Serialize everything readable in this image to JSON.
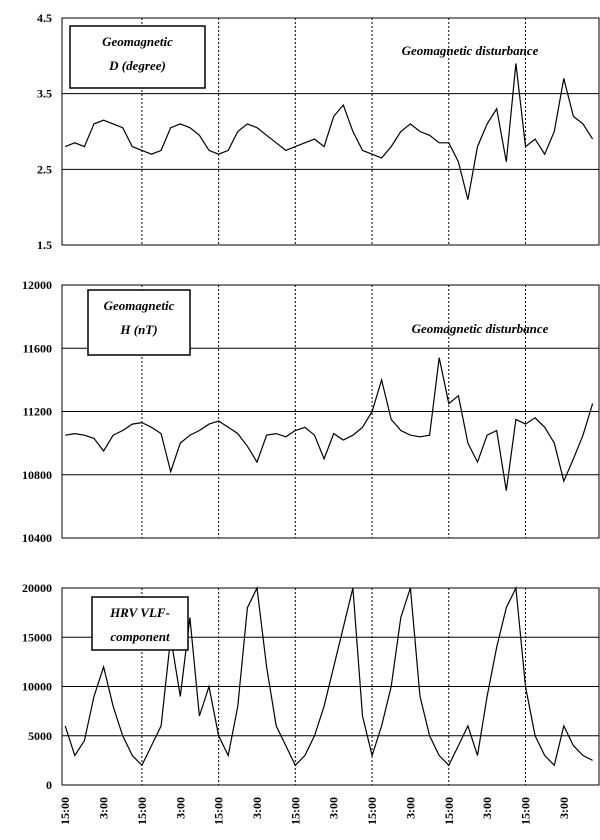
{
  "chart_data": [
    {
      "type": "line",
      "title": [
        "Geomagnetic",
        "D (degree)"
      ],
      "annotation": "Geomagnetic disturbance",
      "color": "#000000",
      "x": [
        0,
        3,
        6,
        9,
        12,
        15,
        18,
        21,
        24,
        27,
        30,
        33,
        36,
        39,
        42,
        45,
        48,
        51,
        54,
        57,
        60,
        63,
        66,
        69,
        72,
        75,
        78,
        81,
        84,
        87,
        90,
        93,
        96,
        99,
        102,
        105,
        108,
        111,
        114,
        117,
        120,
        123,
        126,
        129,
        132,
        135,
        138,
        141,
        144,
        147,
        150,
        153,
        156,
        159,
        162,
        165
      ],
      "values": [
        2.8,
        2.85,
        2.8,
        3.1,
        3.15,
        3.1,
        3.05,
        2.8,
        2.75,
        2.7,
        2.75,
        3.05,
        3.1,
        3.05,
        2.95,
        2.75,
        2.7,
        2.75,
        3.0,
        3.1,
        3.05,
        2.95,
        2.85,
        2.75,
        2.8,
        2.85,
        2.9,
        2.8,
        3.2,
        3.35,
        3.0,
        2.75,
        2.7,
        2.65,
        2.8,
        3.0,
        3.1,
        3.0,
        2.95,
        2.85,
        2.85,
        2.6,
        2.1,
        2.8,
        3.1,
        3.3,
        2.6,
        3.9,
        2.8,
        2.9,
        2.7,
        3.0,
        3.7,
        3.2,
        3.1,
        2.9
      ],
      "xlim": [
        -1,
        167
      ],
      "ylim": [
        1.5,
        4.5
      ],
      "yticks": [
        1.5,
        2.5,
        3.5,
        4.5
      ],
      "grid": true
    },
    {
      "type": "line",
      "title": [
        "Geomagnetic",
        "H (nT)"
      ],
      "annotation": "Geomagnetic disturbance",
      "color": "#000000",
      "x": [
        0,
        3,
        6,
        9,
        12,
        15,
        18,
        21,
        24,
        27,
        30,
        33,
        36,
        39,
        42,
        45,
        48,
        51,
        54,
        57,
        60,
        63,
        66,
        69,
        72,
        75,
        78,
        81,
        84,
        87,
        90,
        93,
        96,
        99,
        102,
        105,
        108,
        111,
        114,
        117,
        120,
        123,
        126,
        129,
        132,
        135,
        138,
        141,
        144,
        147,
        150,
        153,
        156,
        159,
        162,
        165
      ],
      "values": [
        11050,
        11060,
        11050,
        11030,
        10950,
        11050,
        11080,
        11120,
        11130,
        11100,
        11060,
        10820,
        11000,
        11050,
        11080,
        11120,
        11140,
        11100,
        11060,
        10980,
        10880,
        11050,
        11060,
        11040,
        11080,
        11100,
        11050,
        10900,
        11060,
        11020,
        11050,
        11100,
        11200,
        11400,
        11150,
        11080,
        11050,
        11040,
        11050,
        11540,
        11250,
        11300,
        11000,
        10880,
        11050,
        11080,
        10700,
        11150,
        11120,
        11160,
        11100,
        11000,
        10760,
        10900,
        11050,
        11250
      ],
      "xlim": [
        -1,
        167
      ],
      "ylim": [
        10400,
        12000
      ],
      "yticks": [
        10400,
        10800,
        11200,
        11600,
        12000
      ],
      "grid": true
    },
    {
      "type": "line",
      "title": [
        "HRV VLF-",
        "component"
      ],
      "color": "#000000",
      "x": [
        0,
        3,
        6,
        9,
        12,
        15,
        18,
        21,
        24,
        27,
        30,
        33,
        36,
        39,
        42,
        45,
        48,
        51,
        54,
        57,
        60,
        63,
        66,
        69,
        72,
        75,
        78,
        81,
        84,
        87,
        90,
        93,
        96,
        99,
        102,
        105,
        108,
        111,
        114,
        117,
        120,
        123,
        126,
        129,
        132,
        135,
        138,
        141,
        144,
        147,
        150,
        153,
        156,
        159,
        162,
        165
      ],
      "values": [
        6000,
        3000,
        4500,
        9000,
        12000,
        8000,
        5000,
        3000,
        2000,
        4000,
        6000,
        15000,
        9000,
        17000,
        7000,
        10000,
        5000,
        3000,
        8000,
        18000,
        20000,
        12000,
        6000,
        4000,
        2000,
        3000,
        5000,
        8000,
        12000,
        16000,
        20000,
        7000,
        3000,
        6000,
        10000,
        17000,
        20000,
        9000,
        5000,
        3000,
        2000,
        4000,
        6000,
        3000,
        9000,
        14000,
        18000,
        20000,
        10000,
        5000,
        3000,
        2000,
        6000,
        4000,
        3000,
        2500
      ],
      "xlim": [
        -1,
        167
      ],
      "ylim": [
        0,
        20000
      ],
      "yticks": [
        0,
        5000,
        10000,
        15000,
        20000
      ],
      "grid": true,
      "xticks": [
        {
          "value": 0,
          "label": "15:00"
        },
        {
          "value": 12,
          "label": "3:00"
        },
        {
          "value": 24,
          "label": "15:00"
        },
        {
          "value": 36,
          "label": "3:00"
        },
        {
          "value": 48,
          "label": "15:00"
        },
        {
          "value": 60,
          "label": "3:00"
        },
        {
          "value": 72,
          "label": "15:00"
        },
        {
          "value": 84,
          "label": "3:00"
        },
        {
          "value": 96,
          "label": "15:00"
        },
        {
          "value": 108,
          "label": "3:00"
        },
        {
          "value": 120,
          "label": "15:00"
        },
        {
          "value": 132,
          "label": "3:00"
        },
        {
          "value": 144,
          "label": "15:00"
        },
        {
          "value": 156,
          "label": "3:00"
        }
      ]
    }
  ]
}
